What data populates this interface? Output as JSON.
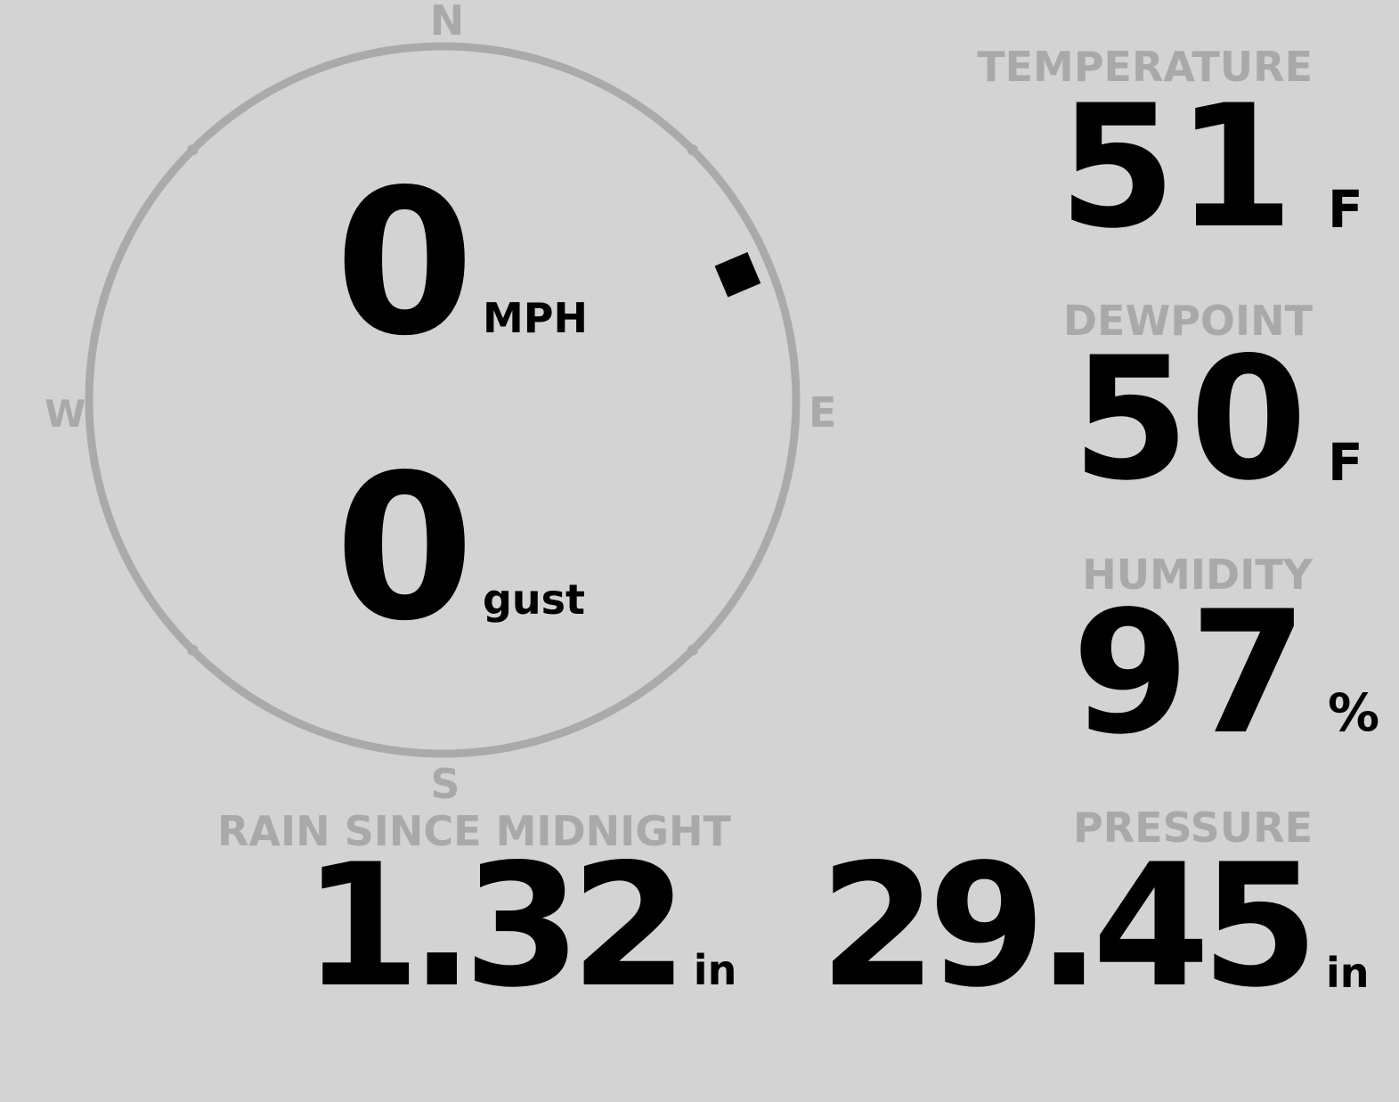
{
  "wind": {
    "speed": "0",
    "speed_unit": "MPH",
    "gust": "0",
    "gust_unit": "gust",
    "direction_deg": 67,
    "compass": {
      "n": "N",
      "e": "E",
      "s": "S",
      "w": "W"
    },
    "ring_color": "#aaaaaa",
    "marker_color": "#000000"
  },
  "temperature": {
    "label": "TEMPERATURE",
    "value": "51",
    "unit": "F"
  },
  "dewpoint": {
    "label": "DEWPOINT",
    "value": "50",
    "unit": "F"
  },
  "humidity": {
    "label": "HUMIDITY",
    "value": "97",
    "unit": "%"
  },
  "rain": {
    "label": "RAIN SINCE MIDNIGHT",
    "value": "1.32",
    "unit": "in"
  },
  "pressure": {
    "label": "PRESSURE",
    "value": "29.45",
    "unit": "in"
  },
  "colors": {
    "background": "#d3d3d3",
    "label": "#a9a9a9",
    "value": "#000000"
  }
}
